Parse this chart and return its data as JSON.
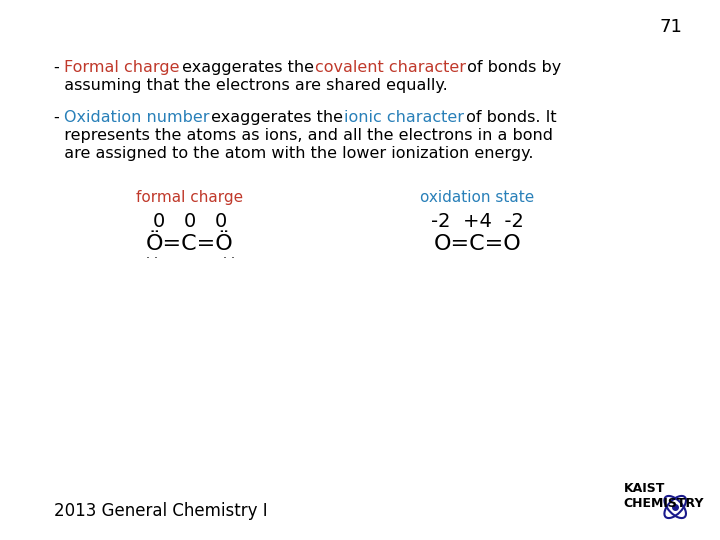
{
  "background_color": "#ffffff",
  "slide_number": "71",
  "slide_number_fontsize": 13,
  "slide_number_color": "#000000",
  "bullet1_parts": [
    {
      "text": "- ",
      "color": "#000000",
      "bold": false
    },
    {
      "text": "Formal charge",
      "color": "#c0392b",
      "bold": false
    },
    {
      "text": " exaggerates the ",
      "color": "#000000",
      "bold": false
    },
    {
      "text": "covalent character",
      "color": "#c0392b",
      "bold": false
    },
    {
      "text": " of bonds by",
      "color": "#000000",
      "bold": false
    }
  ],
  "bullet1_line2": "  assuming that the electrons are shared equally.",
  "bullet2_parts": [
    {
      "text": "- ",
      "color": "#000000",
      "bold": false
    },
    {
      "text": "Oxidation number",
      "color": "#2980b9",
      "bold": false
    },
    {
      "text": " exaggerates the ",
      "color": "#000000",
      "bold": false
    },
    {
      "text": "ionic character",
      "color": "#2980b9",
      "bold": false
    },
    {
      "text": " of bonds. It",
      "color": "#000000",
      "bold": false
    }
  ],
  "bullet2_line2": "  represents the atoms as ions, and all the electrons in a bond",
  "bullet2_line3": "  are assigned to the atom with the lower ionization energy.",
  "formal_charge_label": "formal charge",
  "formal_charge_label_color": "#c0392b",
  "formal_charge_numbers": "0   0   0",
  "formal_charge_molecule": "Ö=C=Ö",
  "oxidation_state_label": "oxidation state",
  "oxidation_state_label_color": "#2980b9",
  "oxidation_state_numbers": "-2  +4  -2",
  "oxidation_state_molecule": "O=C=O",
  "footer_text": "2013 General Chemistry I",
  "footer_color": "#000000",
  "footer_fontsize": 12,
  "body_fontsize": 11.5,
  "label_fontsize": 11,
  "molecule_fontsize": 14
}
